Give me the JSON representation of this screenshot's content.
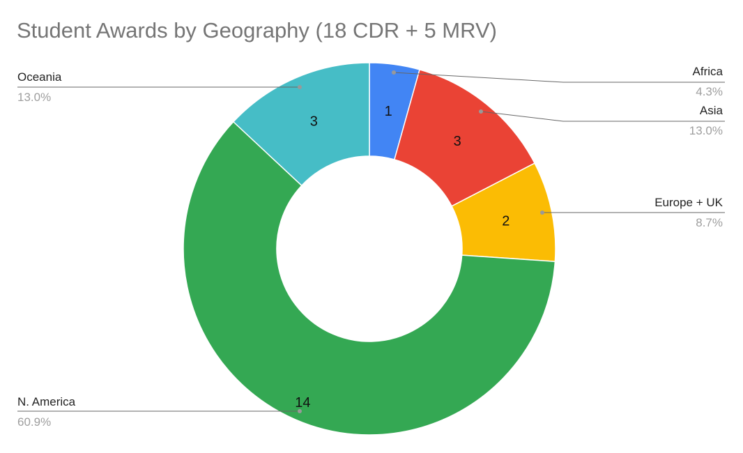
{
  "chart_data": {
    "type": "pie",
    "donut": true,
    "title": "Student Awards by Geography (18 CDR + 5 MRV)",
    "slices": [
      {
        "label": "Africa",
        "value": 1,
        "percent": "4.3%",
        "color": "#4285f4"
      },
      {
        "label": "Asia",
        "value": 3,
        "percent": "13.0%",
        "color": "#ea4335"
      },
      {
        "label": "Europe + UK",
        "value": 2,
        "percent": "8.7%",
        "color": "#fbbc04"
      },
      {
        "label": "N. America",
        "value": 14,
        "percent": "60.9%",
        "color": "#34a853"
      },
      {
        "label": "Oceania",
        "value": 3,
        "percent": "13.0%",
        "color": "#46bdc6"
      }
    ],
    "legend": "none (callout labels)"
  }
}
